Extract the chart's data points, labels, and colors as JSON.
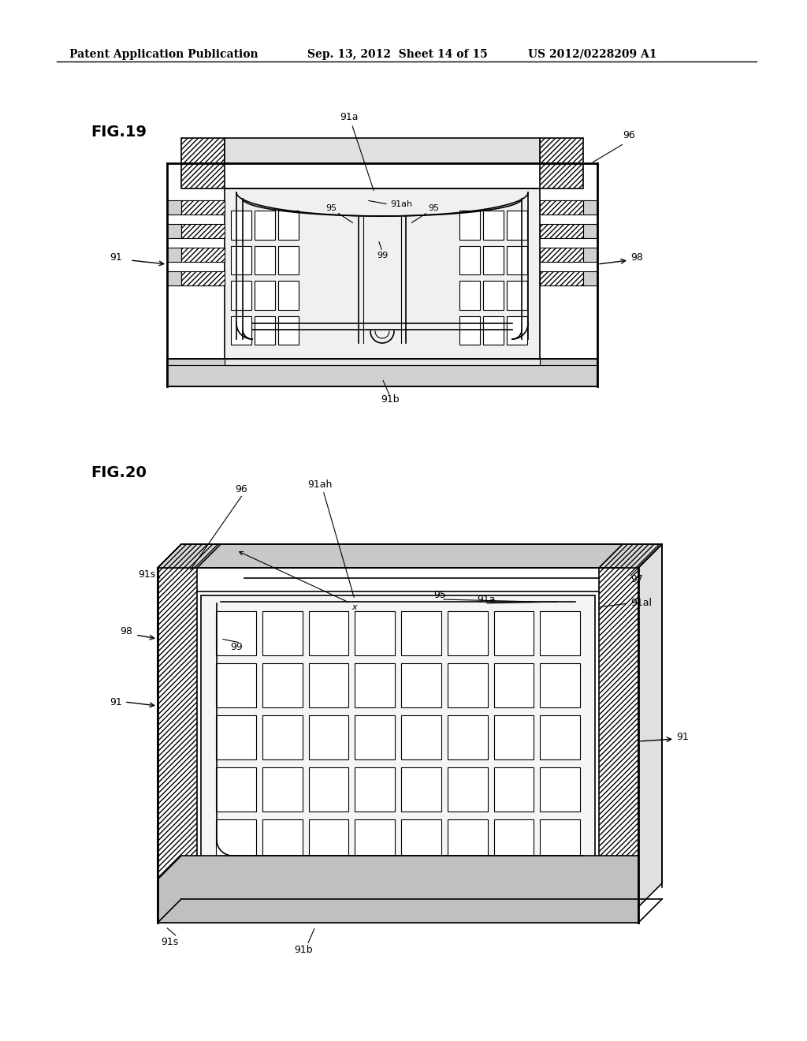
{
  "background_color": "#ffffff",
  "header_text": "Patent Application Publication",
  "header_date": "Sep. 13, 2012  Sheet 14 of 15",
  "header_patent": "US 2012/0228209 A1",
  "header_fontsize": 10,
  "fig19_label": "FIG.19",
  "fig20_label": "FIG.20",
  "line_color": "#000000"
}
